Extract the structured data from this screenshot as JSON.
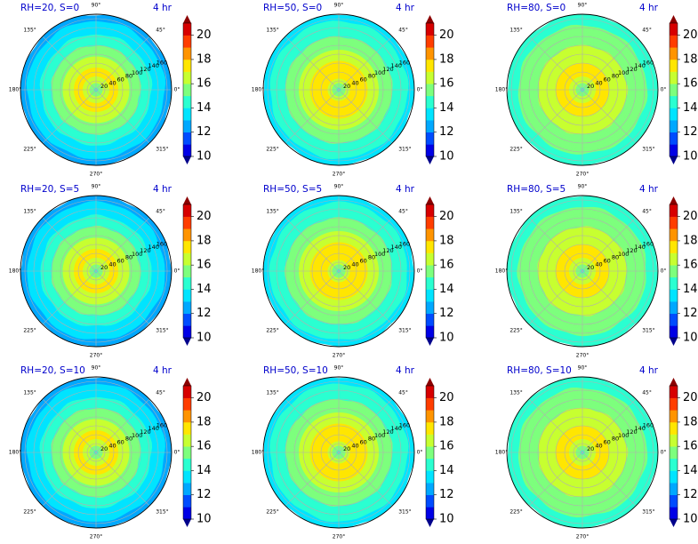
{
  "colorbar": {
    "ticks": [
      10,
      12,
      14,
      16,
      18,
      20
    ],
    "levels": [
      10,
      11,
      12,
      13,
      14,
      15,
      16,
      17,
      18,
      19,
      20,
      21
    ],
    "colors": [
      "#00009b",
      "#0000e6",
      "#004cff",
      "#00a8ff",
      "#00e4ff",
      "#2affd1",
      "#7dff7d",
      "#c7ff30",
      "#ffe600",
      "#ff9400",
      "#ff3d00",
      "#d70000",
      "#8b0000"
    ],
    "under_color": "#00008b",
    "over_color": "#8b0000",
    "extend": "both"
  },
  "chart_data": [
    {
      "type": "polar-contour",
      "title": "RH=20, S=0",
      "time_label": "4 hr",
      "rh": 20,
      "s": 0,
      "theta_labels": [
        "0°",
        "45°",
        "90°",
        "135°",
        "180°",
        "225°",
        "270°",
        "315°"
      ],
      "r_ticks": [
        20,
        40,
        60,
        80,
        100,
        120,
        140,
        160
      ],
      "center_value": 14.5,
      "outer_value": 12.5,
      "peak_value": 17.5,
      "peak_radius": 45
    },
    {
      "type": "polar-contour",
      "title": "RH=50, S=0",
      "time_label": "4 hr",
      "rh": 50,
      "s": 0,
      "theta_labels": [
        "0°",
        "45°",
        "90°",
        "135°",
        "180°",
        "225°",
        "270°",
        "315°"
      ],
      "r_ticks": [
        20,
        40,
        60,
        80,
        100,
        120,
        140,
        160
      ],
      "center_value": 14.5,
      "outer_value": 13.5,
      "peak_value": 18,
      "peak_radius": 45
    },
    {
      "type": "polar-contour",
      "title": "RH=80, S=0",
      "time_label": "4 hr",
      "rh": 80,
      "s": 0,
      "theta_labels": [
        "0°",
        "45°",
        "90°",
        "135°",
        "180°",
        "225°",
        "270°",
        "315°"
      ],
      "r_ticks": [
        20,
        40,
        60,
        80,
        100,
        120,
        140,
        160
      ],
      "center_value": 14.5,
      "outer_value": 14.5,
      "peak_value": 17.5,
      "peak_radius": 45
    },
    {
      "type": "polar-contour",
      "title": "RH=20, S=5",
      "time_label": "4 hr",
      "rh": 20,
      "s": 5,
      "theta_labels": [
        "0°",
        "45°",
        "90°",
        "135°",
        "180°",
        "225°",
        "270°",
        "315°"
      ],
      "r_ticks": [
        20,
        40,
        60,
        80,
        100,
        120,
        140,
        160
      ],
      "center_value": 14.5,
      "outer_value": 12.5,
      "peak_value": 17.5,
      "peak_radius": 45
    },
    {
      "type": "polar-contour",
      "title": "RH=50, S=5",
      "time_label": "4 hr",
      "rh": 50,
      "s": 5,
      "theta_labels": [
        "0°",
        "45°",
        "90°",
        "135°",
        "180°",
        "225°",
        "270°",
        "315°"
      ],
      "r_ticks": [
        20,
        40,
        60,
        80,
        100,
        120,
        140,
        160
      ],
      "center_value": 14.5,
      "outer_value": 13.5,
      "peak_value": 18,
      "peak_radius": 45
    },
    {
      "type": "polar-contour",
      "title": "RH=80, S=5",
      "time_label": "4 hr",
      "rh": 80,
      "s": 5,
      "theta_labels": [
        "0°",
        "45°",
        "90°",
        "135°",
        "180°",
        "225°",
        "270°",
        "315°"
      ],
      "r_ticks": [
        20,
        40,
        60,
        80,
        100,
        120,
        140,
        160
      ],
      "center_value": 14.5,
      "outer_value": 14.5,
      "peak_value": 17.5,
      "peak_radius": 45
    },
    {
      "type": "polar-contour",
      "title": "RH=20, S=10",
      "time_label": "4 hr",
      "rh": 20,
      "s": 10,
      "theta_labels": [
        "0°",
        "45°",
        "90°",
        "135°",
        "180°",
        "225°",
        "270°",
        "315°"
      ],
      "r_ticks": [
        20,
        40,
        60,
        80,
        100,
        120,
        140,
        160
      ],
      "center_value": 14.5,
      "outer_value": 12.5,
      "peak_value": 17.5,
      "peak_radius": 45
    },
    {
      "type": "polar-contour",
      "title": "RH=50, S=10",
      "time_label": "4 hr",
      "rh": 50,
      "s": 10,
      "theta_labels": [
        "0°",
        "45°",
        "90°",
        "135°",
        "180°",
        "225°",
        "270°",
        "315°"
      ],
      "r_ticks": [
        20,
        40,
        60,
        80,
        100,
        120,
        140,
        160
      ],
      "center_value": 14.5,
      "outer_value": 13.5,
      "peak_value": 18,
      "peak_radius": 45
    },
    {
      "type": "polar-contour",
      "title": "RH=80, S=10",
      "time_label": "4 hr",
      "rh": 80,
      "s": 10,
      "theta_labels": [
        "0°",
        "45°",
        "90°",
        "135°",
        "180°",
        "225°",
        "270°",
        "315°"
      ],
      "r_ticks": [
        20,
        40,
        60,
        80,
        100,
        120,
        140,
        160
      ],
      "center_value": 14.5,
      "outer_value": 14.5,
      "peak_value": 17.5,
      "peak_radius": 45
    }
  ]
}
